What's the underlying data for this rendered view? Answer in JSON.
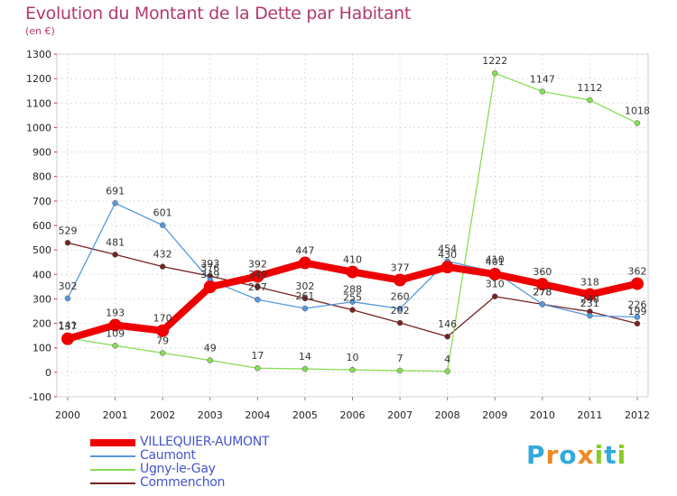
{
  "chart_data": {
    "type": "line",
    "title": "Evolution du Montant de la Dette par Habitant",
    "subtitle": "(en €)",
    "x": [
      "2000",
      "2001",
      "2002",
      "2003",
      "2004",
      "2005",
      "2006",
      "2007",
      "2008",
      "2009",
      "2010",
      "2011",
      "2012"
    ],
    "ylim": [
      -100,
      1300
    ],
    "yticks": [
      "-100",
      "0",
      "100",
      "200",
      "300",
      "400",
      "500",
      "600",
      "700",
      "800",
      "900",
      "1000",
      "1100",
      "1200",
      "1300"
    ],
    "grid": true,
    "legend_position": "bottom-left",
    "series": [
      {
        "name": "VILLEQUIER-AUMONT",
        "color": "#ee0000",
        "values": [
          137,
          193,
          170,
          349,
          392,
          447,
          410,
          377,
          430,
          401,
          360,
          318,
          362
        ],
        "labels": [
          "137",
          "193",
          "170",
          "349",
          "392",
          "447",
          "410",
          "377",
          "430",
          "401",
          "360",
          "318",
          "362"
        ]
      },
      {
        "name": "Caumont",
        "color": "#5599dd",
        "values": [
          302,
          691,
          601,
          376,
          297,
          261,
          288,
          260,
          454,
          410,
          278,
          231,
          226
        ],
        "labels": [
          "302",
          "691",
          "601",
          "376",
          "297",
          "261",
          "288",
          "260",
          "454",
          "410",
          "278",
          "231",
          "226"
        ]
      },
      {
        "name": "Ugny-le-Gay",
        "color": "#88dd55",
        "values": [
          141,
          109,
          79,
          49,
          17,
          14,
          10,
          7,
          4,
          1222,
          1147,
          1112,
          1018
        ],
        "labels": [
          "141",
          "109",
          "79",
          "49",
          "17",
          "14",
          "10",
          "7",
          "4",
          "1222",
          "1147",
          "1112",
          "1018"
        ]
      },
      {
        "name": "Commenchon",
        "color": "#772222",
        "values": [
          529,
          481,
          432,
          393,
          349,
          302,
          255,
          202,
          146,
          310,
          278,
          248,
          199
        ],
        "labels": [
          "529",
          "481",
          "432",
          "393",
          "349",
          "302",
          "255",
          "202",
          "146",
          "310",
          "278",
          "248",
          "199"
        ]
      }
    ]
  },
  "logo": {
    "letters": [
      "P",
      "r",
      "o",
      "x",
      "i",
      "t",
      "i"
    ],
    "colors": [
      "#33aadd",
      "#ee8822",
      "#33aadd",
      "#ee8822",
      "#88cc22",
      "#33aadd",
      "#88cc22"
    ]
  }
}
